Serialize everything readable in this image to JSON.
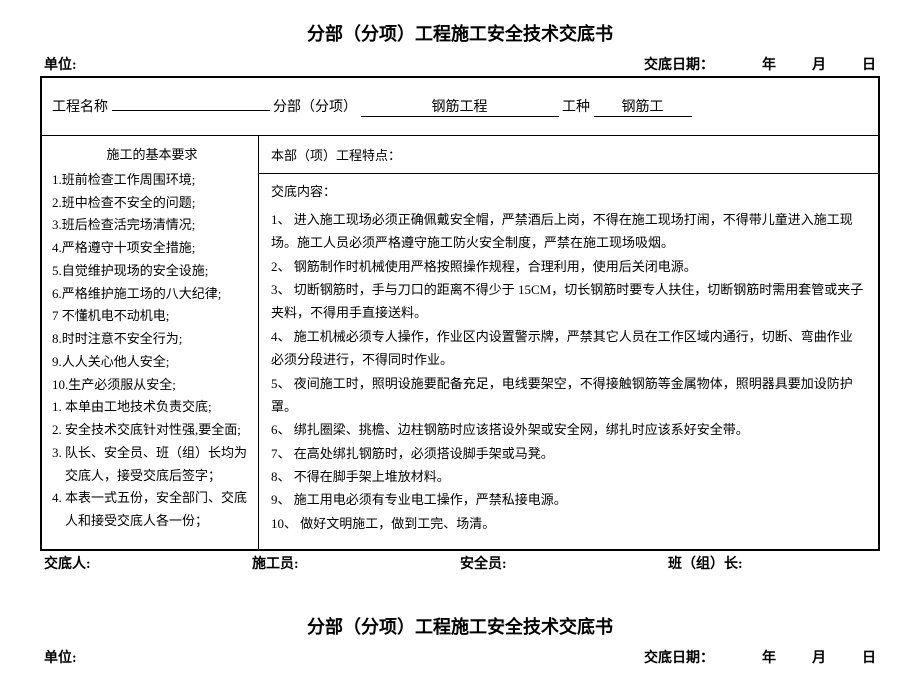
{
  "document": {
    "title": "分部（分项）工程施工安全技术交底书",
    "unit_label": "单位:",
    "date_label": "交底日期：",
    "date_year": "年",
    "date_month": "月",
    "date_day": "日"
  },
  "top": {
    "project_label": "工程名称",
    "project_value": "",
    "subproject_label": "分部（分项）",
    "subproject_value": "钢筋工程",
    "worktype_label": "工种",
    "worktype_value": "钢筋工"
  },
  "left": {
    "heading": "施工的基本要求",
    "items": [
      "1.班前检查工作周围环境;",
      "2.班中检查不安全的问题;",
      "3.班后检查活完场清情况;",
      "4.严格遵守十项安全措施;",
      "5.自觉维护现场的安全设施;",
      "6.严格维护施工场的八大纪律;",
      "7 不懂机电不动机电;",
      "8.时时注意不安全行为;",
      "9.人人关心他人安全;",
      "10.生产必须服从安全;"
    ],
    "notes": [
      "1.  本单由工地技术负责交底;",
      "2.  安全技术交底针对性强,要全面;",
      "3.  队长、安全员、班（组）长均为交底人，接受交底后签字；",
      "4.  本表一式五份，安全部门、交底人和接受交底人各一份；"
    ]
  },
  "right": {
    "feature_label": "本部（项）工程特点：",
    "content_label": "交底内容：",
    "items": [
      "1、 进入施工现场必须正确佩戴安全帽，严禁酒后上岗，不得在施工现场打闹，不得带儿童进入施工现场。施工人员必须严格遵守施工防火安全制度，严禁在施工现场吸烟。",
      "2、 钢筋制作时机械使用严格按照操作规程，合理利用，使用后关闭电源。",
      "3、 切断钢筋时，手与刀口的距离不得少于 15CM，切长钢筋时要专人扶住，切断钢筋时需用套管或夹子夹料，不得用手直接送料。",
      "4、 施工机械必须专人操作，作业区内设置警示牌，严禁其它人员在工作区域内通行，切断、弯曲作业必须分段进行，不得同时作业。",
      "5、 夜间施工时，照明设施要配备充足，电线要架空，不得接触钢筋等金属物体，照明器具要加设防护罩。",
      "6、 绑扎圈梁、挑檐、边柱钢筋时应该搭设外架或安全网，绑扎时应该系好安全带。",
      "7、 在高处绑扎钢筋时，必须搭设脚手架或马凳。",
      "8、 不得在脚手架上堆放材料。",
      "9、 施工用电必须有专业电工操作，严禁私接电源。",
      "10、   做好文明施工，做到工完、场清。"
    ]
  },
  "footer": {
    "a": "交底人:",
    "b": "施工员:",
    "c": "安全员:",
    "d": "班（组）长:"
  }
}
